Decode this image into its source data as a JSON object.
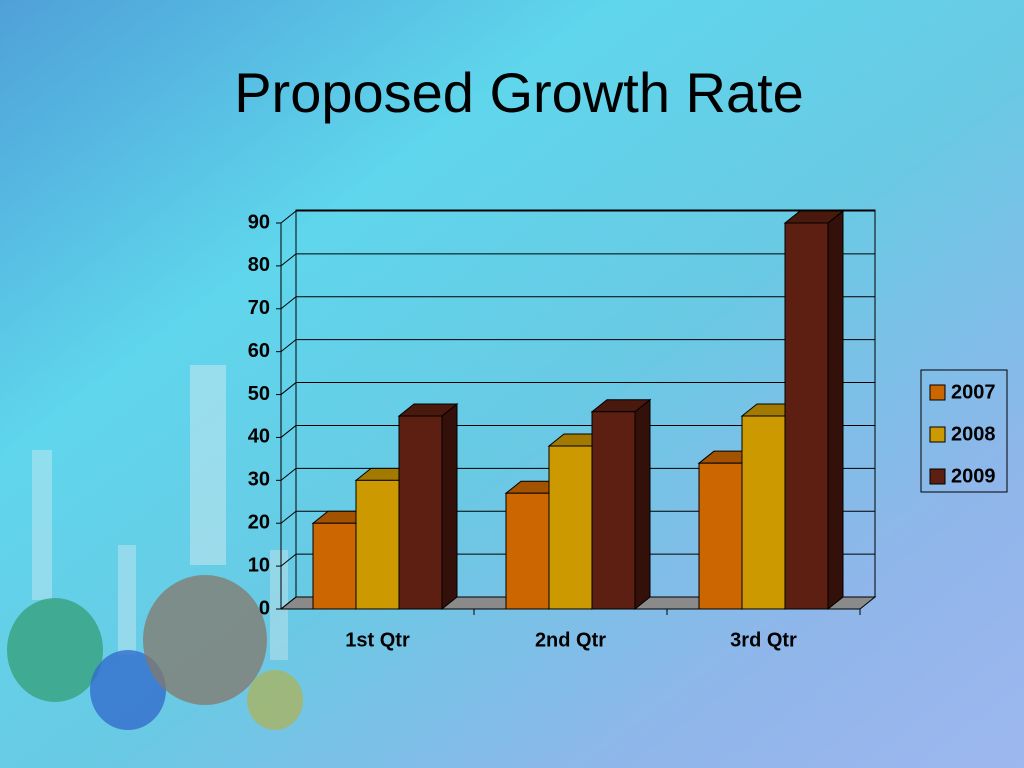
{
  "chart_data": {
    "type": "bar3d",
    "title": "Proposed Growth Rate",
    "categories": [
      "1st Qtr",
      "2nd Qtr",
      "3rd Qtr"
    ],
    "series": [
      {
        "name": "2007",
        "color": "#cc6600",
        "values": [
          20,
          27,
          34
        ]
      },
      {
        "name": "2008",
        "color": "#cc9900",
        "values": [
          30,
          38,
          45
        ]
      },
      {
        "name": "2009",
        "color": "#5c1f12",
        "values": [
          45,
          46,
          90
        ]
      }
    ],
    "ylim": [
      0,
      90
    ],
    "yticks": [
      0,
      10,
      20,
      30,
      40,
      50,
      60,
      70,
      80,
      90
    ],
    "grid": true,
    "legend": "right"
  }
}
